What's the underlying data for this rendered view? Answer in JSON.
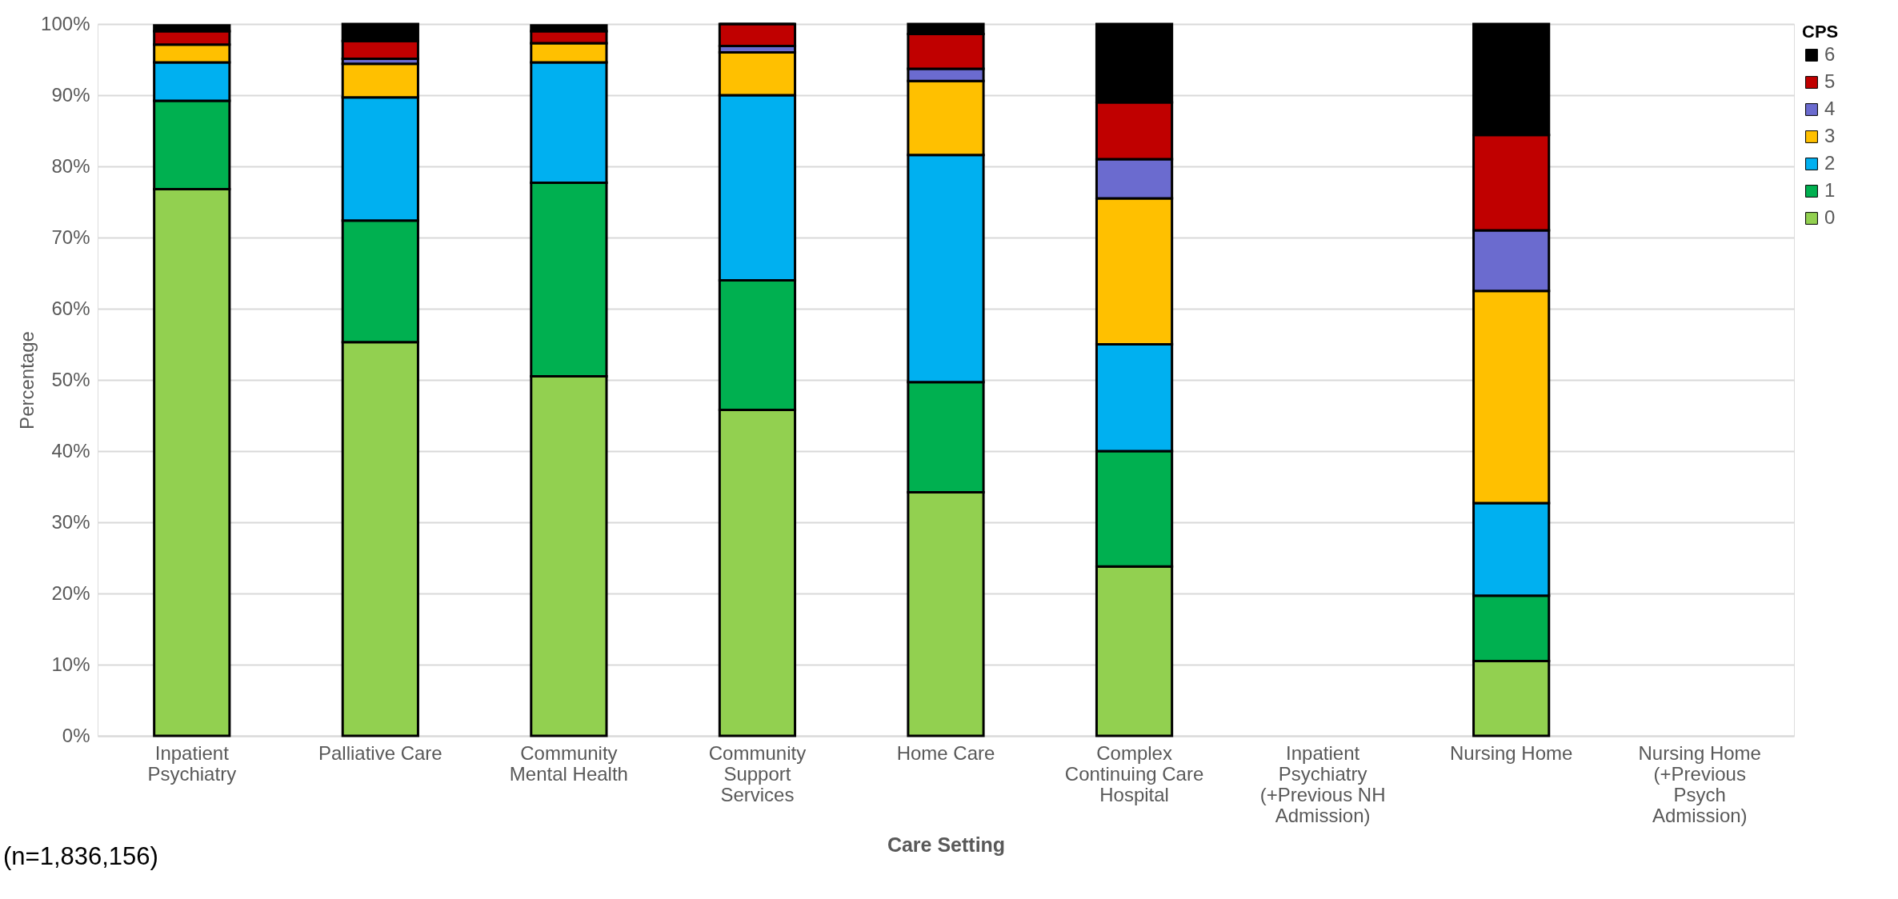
{
  "chart_data": {
    "type": "bar",
    "stacked": true,
    "xlabel": "Care Setting",
    "ylabel": "Percentage",
    "legend_title": "CPS",
    "legend": "right",
    "grid": "y",
    "categories": [
      "Inpatient Psychiatry",
      "Palliative Care",
      "Community Mental Health",
      "Community Support Services",
      "Home Care",
      "Complex Continuing Care Hospital",
      "Inpatient Psychiatry (+Previous NH Admission)",
      "Nursing Home",
      "Nursing Home (+Previous Psych Admission)"
    ],
    "ylim": [
      0,
      100
    ],
    "yticks": [
      {
        "value": 0,
        "label": "0%"
      },
      {
        "value": 10,
        "label": "10%"
      },
      {
        "value": 20,
        "label": "20%"
      },
      {
        "value": 30,
        "label": "30%"
      },
      {
        "value": 40,
        "label": "40%"
      },
      {
        "value": 50,
        "label": "50%"
      },
      {
        "value": 60,
        "label": "60%"
      },
      {
        "value": 70,
        "label": "70%"
      },
      {
        "value": 80,
        "label": "80%"
      },
      {
        "value": 90,
        "label": "90%"
      },
      {
        "value": 100,
        "label": "100%"
      }
    ],
    "series": [
      {
        "name": "0",
        "color": "#92d050",
        "values": [
          76.8,
          55.3,
          50.5,
          45.8,
          34.2,
          23.8,
          null,
          10.5,
          null
        ]
      },
      {
        "name": "1",
        "color": "#00b050",
        "values": [
          12.4,
          17.1,
          27.2,
          18.2,
          15.5,
          16.2,
          null,
          9.2,
          null
        ]
      },
      {
        "name": "2",
        "color": "#00b0f0",
        "values": [
          5.4,
          17.3,
          16.9,
          26.0,
          31.9,
          15.0,
          null,
          13.0,
          null
        ]
      },
      {
        "name": "3",
        "color": "#ffc000",
        "values": [
          2.5,
          4.7,
          2.7,
          6.0,
          10.4,
          20.5,
          null,
          29.8,
          null
        ]
      },
      {
        "name": "4",
        "color": "#6b6bcf",
        "values": [
          null,
          0.7,
          null,
          0.9,
          1.7,
          5.5,
          null,
          8.5,
          null
        ]
      },
      {
        "name": "5",
        "color": "#c00000",
        "values": [
          1.9,
          2.5,
          1.7,
          3.1,
          4.9,
          8.0,
          null,
          13.4,
          null
        ]
      },
      {
        "name": "6",
        "color": "#000000",
        "values": [
          0.8,
          2.4,
          0.8,
          0.0,
          1.4,
          11.0,
          null,
          15.6,
          null
        ]
      }
    ],
    "annotations": [
      "(n=1,836,156)"
    ]
  }
}
